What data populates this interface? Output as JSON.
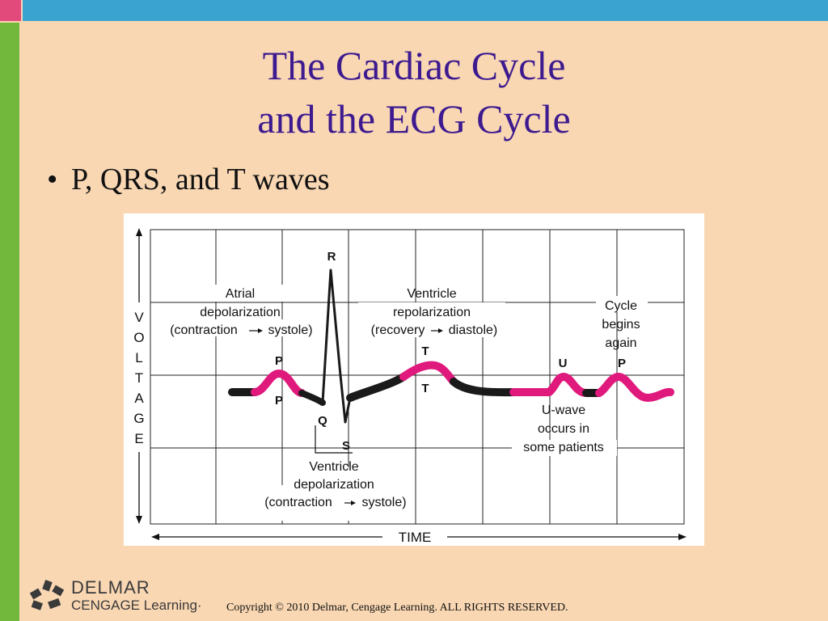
{
  "slide": {
    "title_line1": "The Cardiac Cycle",
    "title_line2": "and the ECG Cycle",
    "bullet": "P, QRS, and T waves"
  },
  "diagram": {
    "y_axis_label": [
      "V",
      "O",
      "L",
      "T",
      "A",
      "G",
      "E"
    ],
    "x_axis_label": "TIME",
    "wave_labels": {
      "p": "P",
      "p_lower": "P",
      "q": "Q",
      "r": "R",
      "s": "S",
      "t": "T",
      "t_lower": "T",
      "u": "U",
      "p_again": "P"
    },
    "atrial": [
      "Atrial",
      "depolarization",
      "(contraction",
      "systole)"
    ],
    "ventricle_repol": [
      "Ventricle",
      "repolarization",
      "(recovery",
      "diastole)"
    ],
    "cycle": [
      "Cycle",
      "begins",
      "again"
    ],
    "u_wave_note": [
      "U-wave",
      "occurs in",
      "some patients"
    ],
    "ventricle_depol": [
      "Ventricle",
      "depolarization",
      "(contraction",
      "systole)"
    ],
    "colors": {
      "highlight": "#e0197d",
      "trace": "#1a1a1a",
      "grid": "#222222"
    }
  },
  "footer": {
    "logo_line1": "DELMAR",
    "logo_line2": "CENGAGE Learning·",
    "copyright": "Copyright © 2010 Delmar, Cengage Learning. ALL RIGHTS RESERVED."
  }
}
